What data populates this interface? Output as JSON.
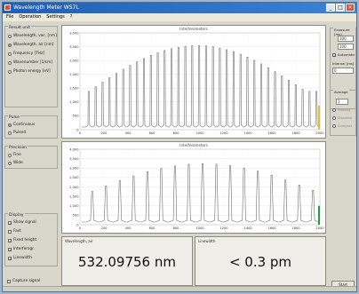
{
  "window": {
    "title": "Wavelength Meter WS7L"
  },
  "menu": [
    "File",
    "Operation",
    "Settings",
    "?"
  ],
  "result_unit": {
    "title": "Result unit",
    "options": [
      {
        "label": "Wavelength, vac. [nm]",
        "selected": false
      },
      {
        "label": "Wavelength, air [nm]",
        "selected": true
      },
      {
        "label": "Frequency [THz]",
        "selected": false
      },
      {
        "label": "Wavenumber [1/cm]",
        "selected": false
      },
      {
        "label": "Photon energy [eV]",
        "selected": false
      }
    ]
  },
  "pulse": {
    "title": "Pulse",
    "options": [
      {
        "label": "Continuous",
        "selected": true
      },
      {
        "label": "Pulsed",
        "selected": false
      }
    ]
  },
  "precision": {
    "title": "Precision",
    "options": [
      {
        "label": "Fine",
        "selected": false
      },
      {
        "label": "Wide",
        "selected": false
      }
    ]
  },
  "display": {
    "title": "Display",
    "options": [
      {
        "label": "Show signal",
        "checked": true
      },
      {
        "label": "Fast",
        "checked": false
      },
      {
        "label": "Fixed height",
        "checked": true
      },
      {
        "label": "Interferogr.",
        "checked": true
      },
      {
        "label": "Linewidth",
        "checked": true
      }
    ],
    "capture_label": "Capture signal"
  },
  "plot1": {
    "title": "Interferometers",
    "yticks": [
      "3,500",
      "3,000",
      "2,500",
      "2,000",
      "1,500",
      "1,000",
      "500",
      "0"
    ],
    "xticks": [
      "0",
      "200",
      "400",
      "600",
      "800",
      "1000",
      "1200",
      "1400",
      "1600",
      "1800",
      "2000"
    ]
  },
  "plot2": {
    "title": "Interferometers",
    "yticks": [
      "4,000",
      "3,500",
      "3,000",
      "2,500",
      "2,000",
      "1,500",
      "1,000",
      "500",
      "0"
    ],
    "xticks": [
      "0",
      "200",
      "400",
      "600",
      "800",
      "1000",
      "1200",
      "1400",
      "1600",
      "1800",
      "2000"
    ]
  },
  "readouts": {
    "wavelength_label": "Wavelength, air",
    "wavelength_value": "532.09756 nm",
    "linewidth_label": "Linewidth",
    "linewidth_value": "< 0.3 pm"
  },
  "exposure": {
    "title": "Exposure [ms]",
    "row1": "300",
    "row2": "100",
    "auto_label": "Automatic",
    "interval_label": "Interval [ms]",
    "interval_value": "0"
  },
  "average": {
    "title": "Average",
    "count": "1",
    "opts": [
      "Floating",
      "Standard",
      "Compact"
    ]
  },
  "start_label": "Start",
  "colors": {
    "titlebar": "#1f5fb4",
    "trace": "#6f6f6f",
    "bar_green": "#2a9a3a",
    "bar_yellow": "#d8c23a"
  }
}
